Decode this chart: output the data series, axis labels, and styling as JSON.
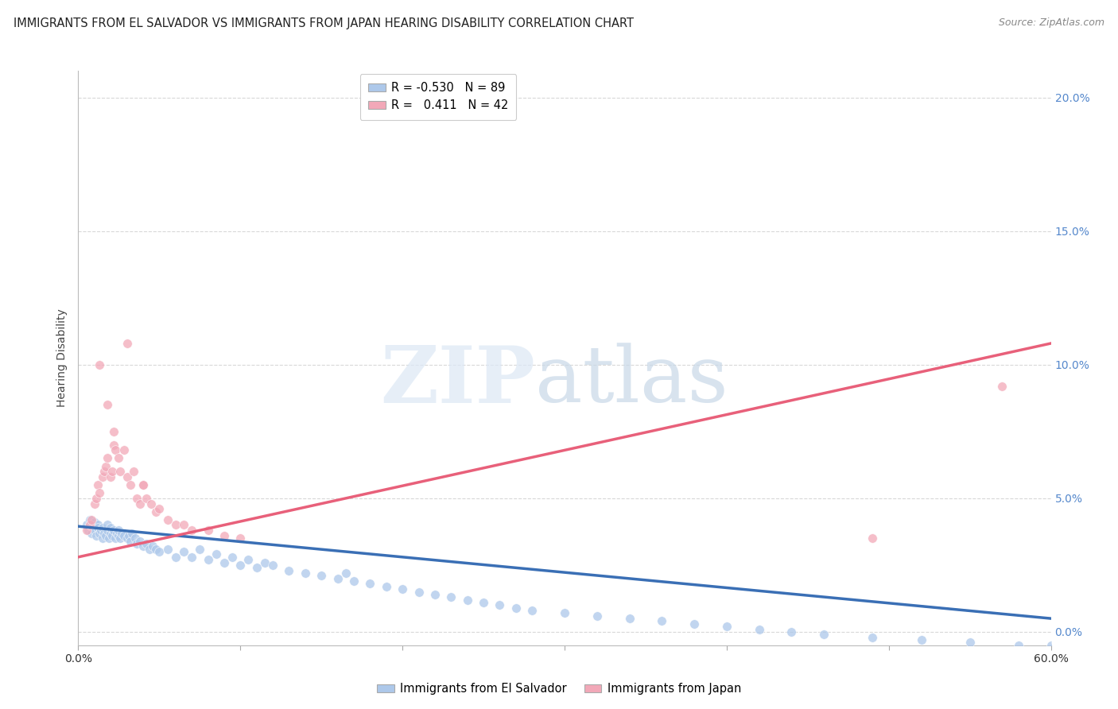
{
  "title": "IMMIGRANTS FROM EL SALVADOR VS IMMIGRANTS FROM JAPAN HEARING DISABILITY CORRELATION CHART",
  "source": "Source: ZipAtlas.com",
  "ylabel": "Hearing Disability",
  "legend_entry_blue": "R = -0.530   N = 89",
  "legend_entry_pink": "R =   0.411   N = 42",
  "legend_label_blue": "Immigrants from El Salvador",
  "legend_label_pink": "Immigrants from Japan",
  "xlim": [
    0.0,
    0.6
  ],
  "ylim": [
    -0.005,
    0.21
  ],
  "yticks": [
    0.0,
    0.05,
    0.1,
    0.15,
    0.2
  ],
  "ytick_labels_right": [
    "0.0%",
    "5.0%",
    "10.0%",
    "15.0%",
    "20.0%"
  ],
  "xtick_left_label": "0.0%",
  "xtick_right_label": "60.0%",
  "blue_color": "#adc8ea",
  "pink_color": "#f2a8b8",
  "blue_line_color": "#3a6fb5",
  "pink_line_color": "#e8607a",
  "grid_color": "#d8d8d8",
  "background_color": "#ffffff",
  "title_fontsize": 10.5,
  "tick_fontsize": 10,
  "blue_line_x": [
    0.0,
    0.6
  ],
  "blue_line_y": [
    0.0395,
    0.005
  ],
  "pink_line_x": [
    0.0,
    0.6
  ],
  "pink_line_y": [
    0.028,
    0.108
  ],
  "blue_x": [
    0.005,
    0.006,
    0.007,
    0.008,
    0.009,
    0.01,
    0.01,
    0.011,
    0.012,
    0.012,
    0.013,
    0.014,
    0.015,
    0.015,
    0.016,
    0.017,
    0.018,
    0.018,
    0.019,
    0.02,
    0.02,
    0.021,
    0.022,
    0.023,
    0.024,
    0.025,
    0.025,
    0.026,
    0.027,
    0.028,
    0.03,
    0.031,
    0.032,
    0.033,
    0.035,
    0.036,
    0.038,
    0.04,
    0.042,
    0.044,
    0.046,
    0.048,
    0.05,
    0.055,
    0.06,
    0.065,
    0.07,
    0.075,
    0.08,
    0.085,
    0.09,
    0.095,
    0.1,
    0.105,
    0.11,
    0.115,
    0.12,
    0.13,
    0.14,
    0.15,
    0.16,
    0.165,
    0.17,
    0.18,
    0.19,
    0.2,
    0.21,
    0.22,
    0.23,
    0.24,
    0.25,
    0.26,
    0.27,
    0.28,
    0.3,
    0.32,
    0.34,
    0.36,
    0.38,
    0.4,
    0.42,
    0.44,
    0.46,
    0.49,
    0.52,
    0.55,
    0.58,
    0.6,
    0.603
  ],
  "blue_y": [
    0.04,
    0.038,
    0.042,
    0.037,
    0.039,
    0.038,
    0.041,
    0.036,
    0.04,
    0.039,
    0.037,
    0.038,
    0.035,
    0.039,
    0.037,
    0.036,
    0.038,
    0.04,
    0.035,
    0.037,
    0.039,
    0.036,
    0.038,
    0.035,
    0.037,
    0.036,
    0.038,
    0.035,
    0.037,
    0.036,
    0.035,
    0.036,
    0.034,
    0.037,
    0.035,
    0.033,
    0.034,
    0.032,
    0.033,
    0.031,
    0.032,
    0.031,
    0.03,
    0.031,
    0.028,
    0.03,
    0.028,
    0.031,
    0.027,
    0.029,
    0.026,
    0.028,
    0.025,
    0.027,
    0.024,
    0.026,
    0.025,
    0.023,
    0.022,
    0.021,
    0.02,
    0.022,
    0.019,
    0.018,
    0.017,
    0.016,
    0.015,
    0.014,
    0.013,
    0.012,
    0.011,
    0.01,
    0.009,
    0.008,
    0.007,
    0.006,
    0.005,
    0.004,
    0.003,
    0.002,
    0.001,
    0.0,
    -0.001,
    -0.002,
    -0.003,
    -0.004,
    -0.005,
    -0.005,
    -0.004
  ],
  "pink_x": [
    0.005,
    0.007,
    0.008,
    0.01,
    0.011,
    0.012,
    0.013,
    0.015,
    0.016,
    0.017,
    0.018,
    0.02,
    0.021,
    0.022,
    0.023,
    0.025,
    0.026,
    0.028,
    0.03,
    0.032,
    0.034,
    0.036,
    0.038,
    0.04,
    0.042,
    0.045,
    0.048,
    0.05,
    0.055,
    0.06,
    0.065,
    0.07,
    0.08,
    0.09,
    0.1,
    0.013,
    0.018,
    0.022,
    0.03,
    0.04,
    0.49,
    0.57
  ],
  "pink_y": [
    0.038,
    0.04,
    0.042,
    0.048,
    0.05,
    0.055,
    0.052,
    0.058,
    0.06,
    0.062,
    0.065,
    0.058,
    0.06,
    0.07,
    0.068,
    0.065,
    0.06,
    0.068,
    0.058,
    0.055,
    0.06,
    0.05,
    0.048,
    0.055,
    0.05,
    0.048,
    0.045,
    0.046,
    0.042,
    0.04,
    0.04,
    0.038,
    0.038,
    0.036,
    0.035,
    0.1,
    0.085,
    0.075,
    0.108,
    0.055,
    0.035,
    0.092
  ]
}
